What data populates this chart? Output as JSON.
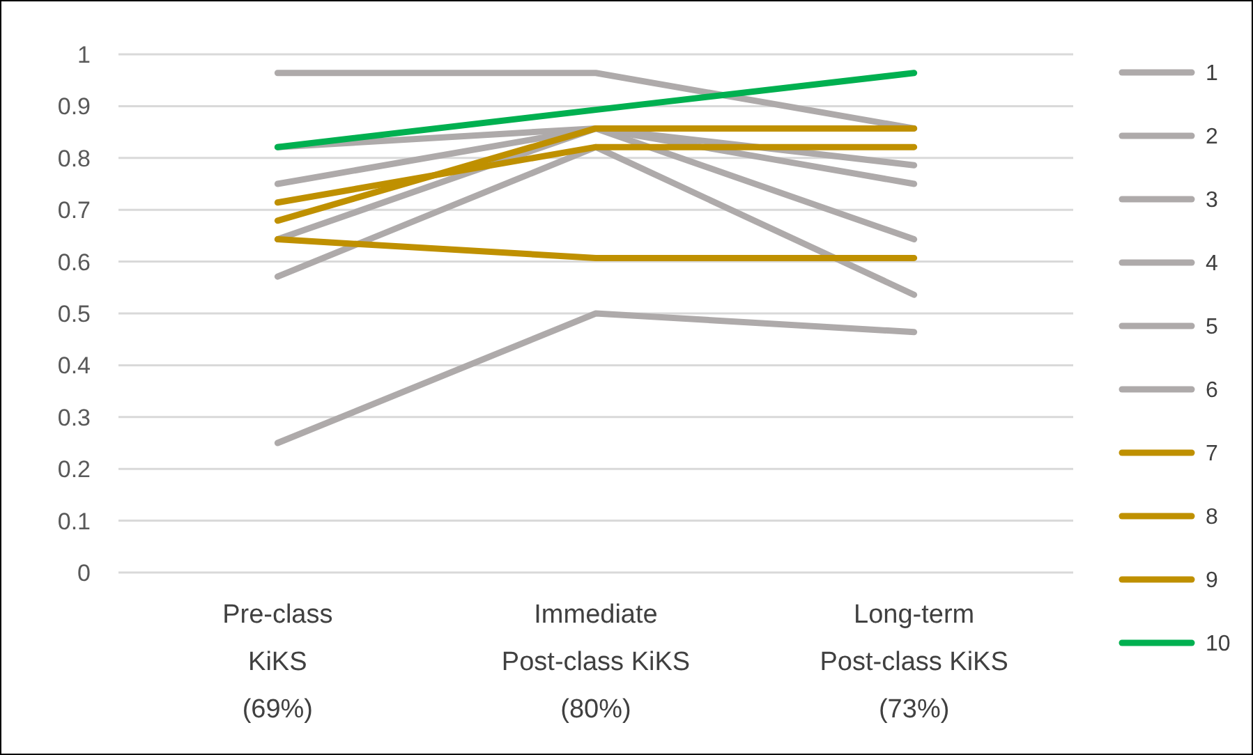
{
  "chart_data": {
    "type": "line",
    "categories": [
      "Pre-class\nKiKS\n(69%)",
      "Immediate\nPost-class KiKS\n(80%)",
      "Long-term\nPost-class KiKS\n(73%)"
    ],
    "series": [
      {
        "name": "1",
        "color": "#aeaaaa",
        "values": [
          0.964,
          0.964,
          0.857
        ]
      },
      {
        "name": "2",
        "color": "#aeaaaa",
        "values": [
          0.821,
          0.857,
          0.786
        ]
      },
      {
        "name": "3",
        "color": "#aeaaaa",
        "values": [
          0.75,
          0.857,
          0.75
        ]
      },
      {
        "name": "4",
        "color": "#aeaaaa",
        "values": [
          0.643,
          0.857,
          0.643
        ]
      },
      {
        "name": "5",
        "color": "#aeaaaa",
        "values": [
          0.571,
          0.821,
          0.536
        ]
      },
      {
        "name": "6",
        "color": "#aeaaaa",
        "values": [
          0.25,
          0.5,
          0.464
        ]
      },
      {
        "name": "7",
        "color": "#bf9000",
        "values": [
          0.714,
          0.821,
          0.821
        ]
      },
      {
        "name": "8",
        "color": "#bf9000",
        "values": [
          0.679,
          0.857,
          0.857
        ]
      },
      {
        "name": "9",
        "color": "#bf9000",
        "values": [
          0.643,
          0.607,
          0.607
        ]
      },
      {
        "name": "10",
        "color": "#00b050",
        "values": [
          0.821,
          0.893,
          0.964
        ]
      }
    ],
    "ylim": [
      0,
      1
    ],
    "yticks": [
      0,
      0.1,
      0.2,
      0.3,
      0.4,
      0.5,
      0.6,
      0.7,
      0.8,
      0.9,
      1
    ],
    "grid": "y",
    "legend": "right",
    "marker": "none",
    "line_style": "solid"
  }
}
